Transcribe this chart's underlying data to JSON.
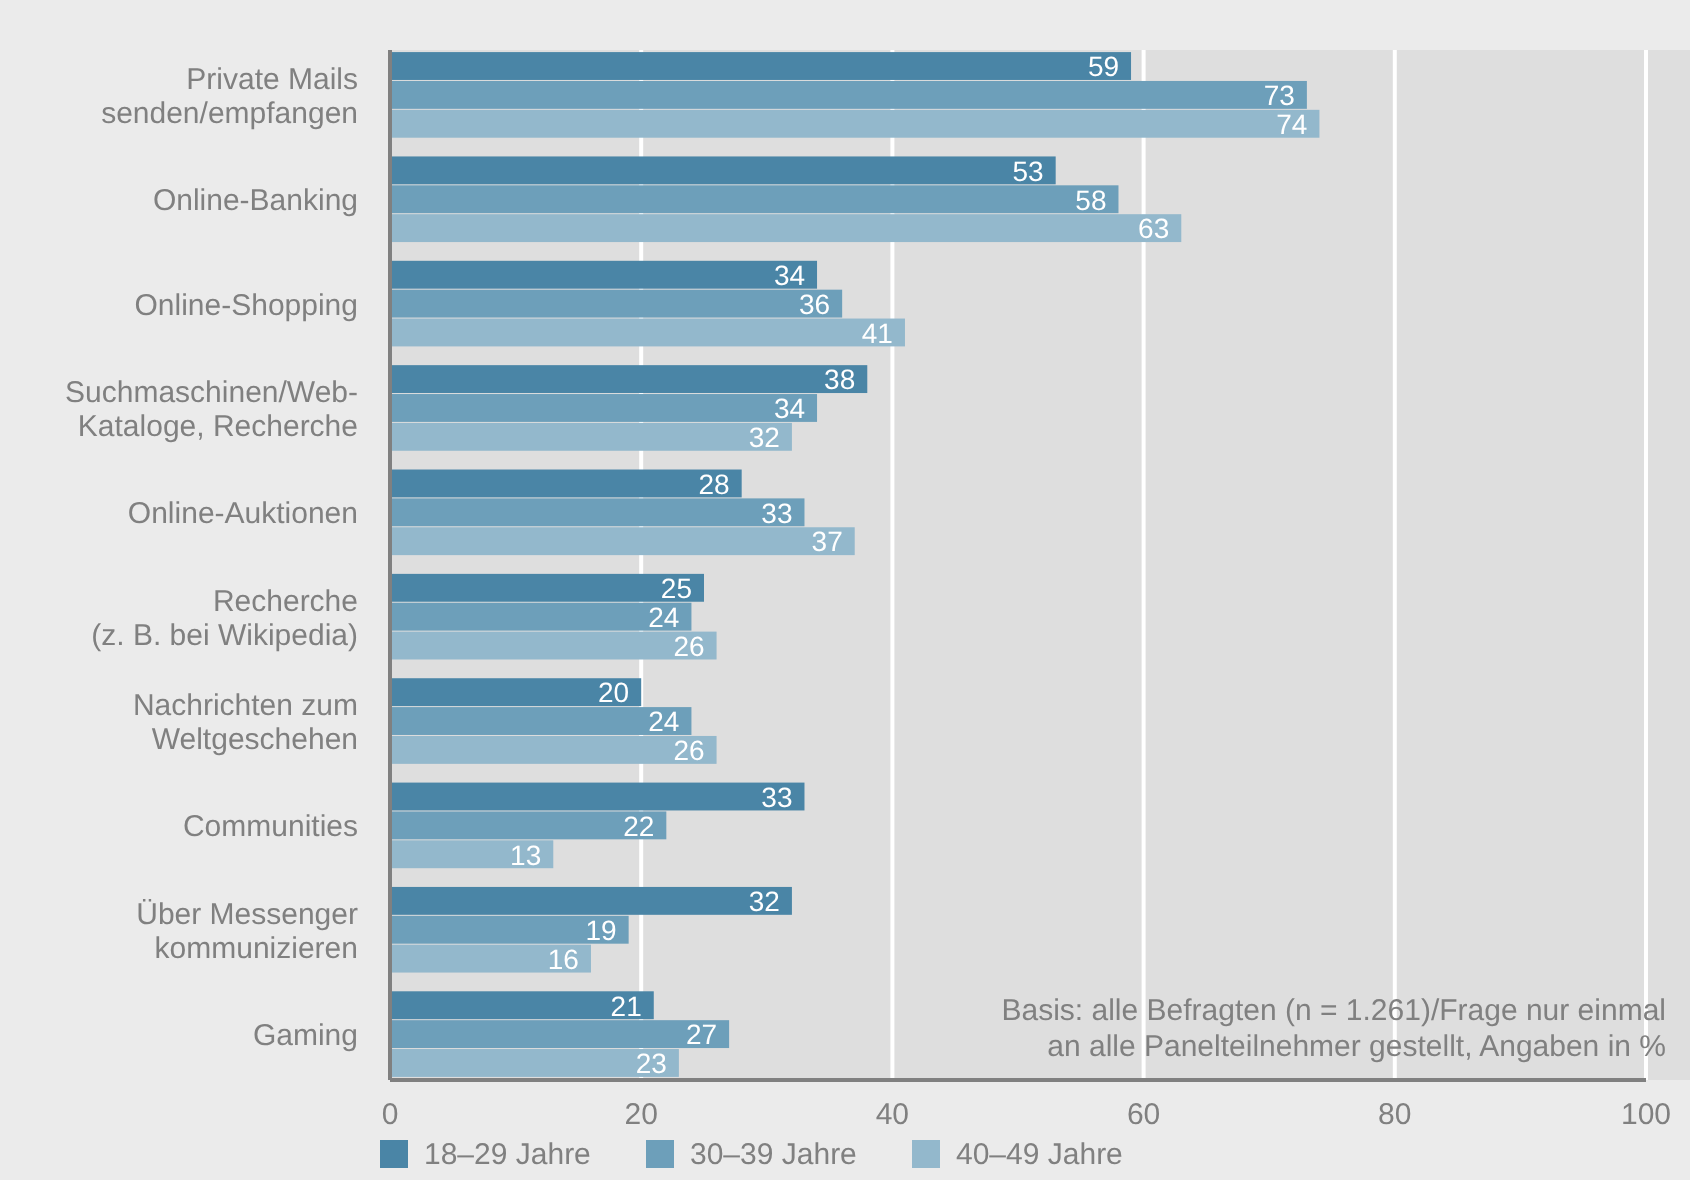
{
  "chart_data": {
    "type": "bar",
    "orientation": "horizontal",
    "categories": [
      "Private Mails\nsenden/empfangen",
      "Online-Banking",
      "Online-Shopping",
      "Suchmaschinen/Web-\nKataloge, Recherche",
      "Online-Auktionen",
      "Recherche\n(z. B. bei Wikipedia)",
      "Nachrichten zum\nWeltgeschehen",
      "Communities",
      "Über Messenger\nkommunizieren",
      "Gaming"
    ],
    "series": [
      {
        "name": "18–29 Jahre",
        "color": "#4a85a6",
        "values": [
          59,
          53,
          34,
          38,
          28,
          25,
          20,
          33,
          32,
          21
        ]
      },
      {
        "name": "30–39 Jahre",
        "color": "#6d9fba",
        "values": [
          73,
          58,
          36,
          34,
          33,
          24,
          24,
          22,
          19,
          27
        ]
      },
      {
        "name": "40–49 Jahre",
        "color": "#93b8cc",
        "values": [
          74,
          63,
          41,
          32,
          37,
          26,
          26,
          13,
          16,
          23
        ]
      }
    ],
    "xlim": [
      0,
      100
    ],
    "xticks": [
      0,
      20,
      40,
      60,
      80,
      100
    ],
    "grid": "x",
    "legend": "bottom",
    "data_labels": true,
    "annotations": [
      "Basis: alle Befragten (n = 1.261)/Frage nur einmal\nan alle Panelteilnehmer gestellt, Angaben in %"
    ]
  }
}
